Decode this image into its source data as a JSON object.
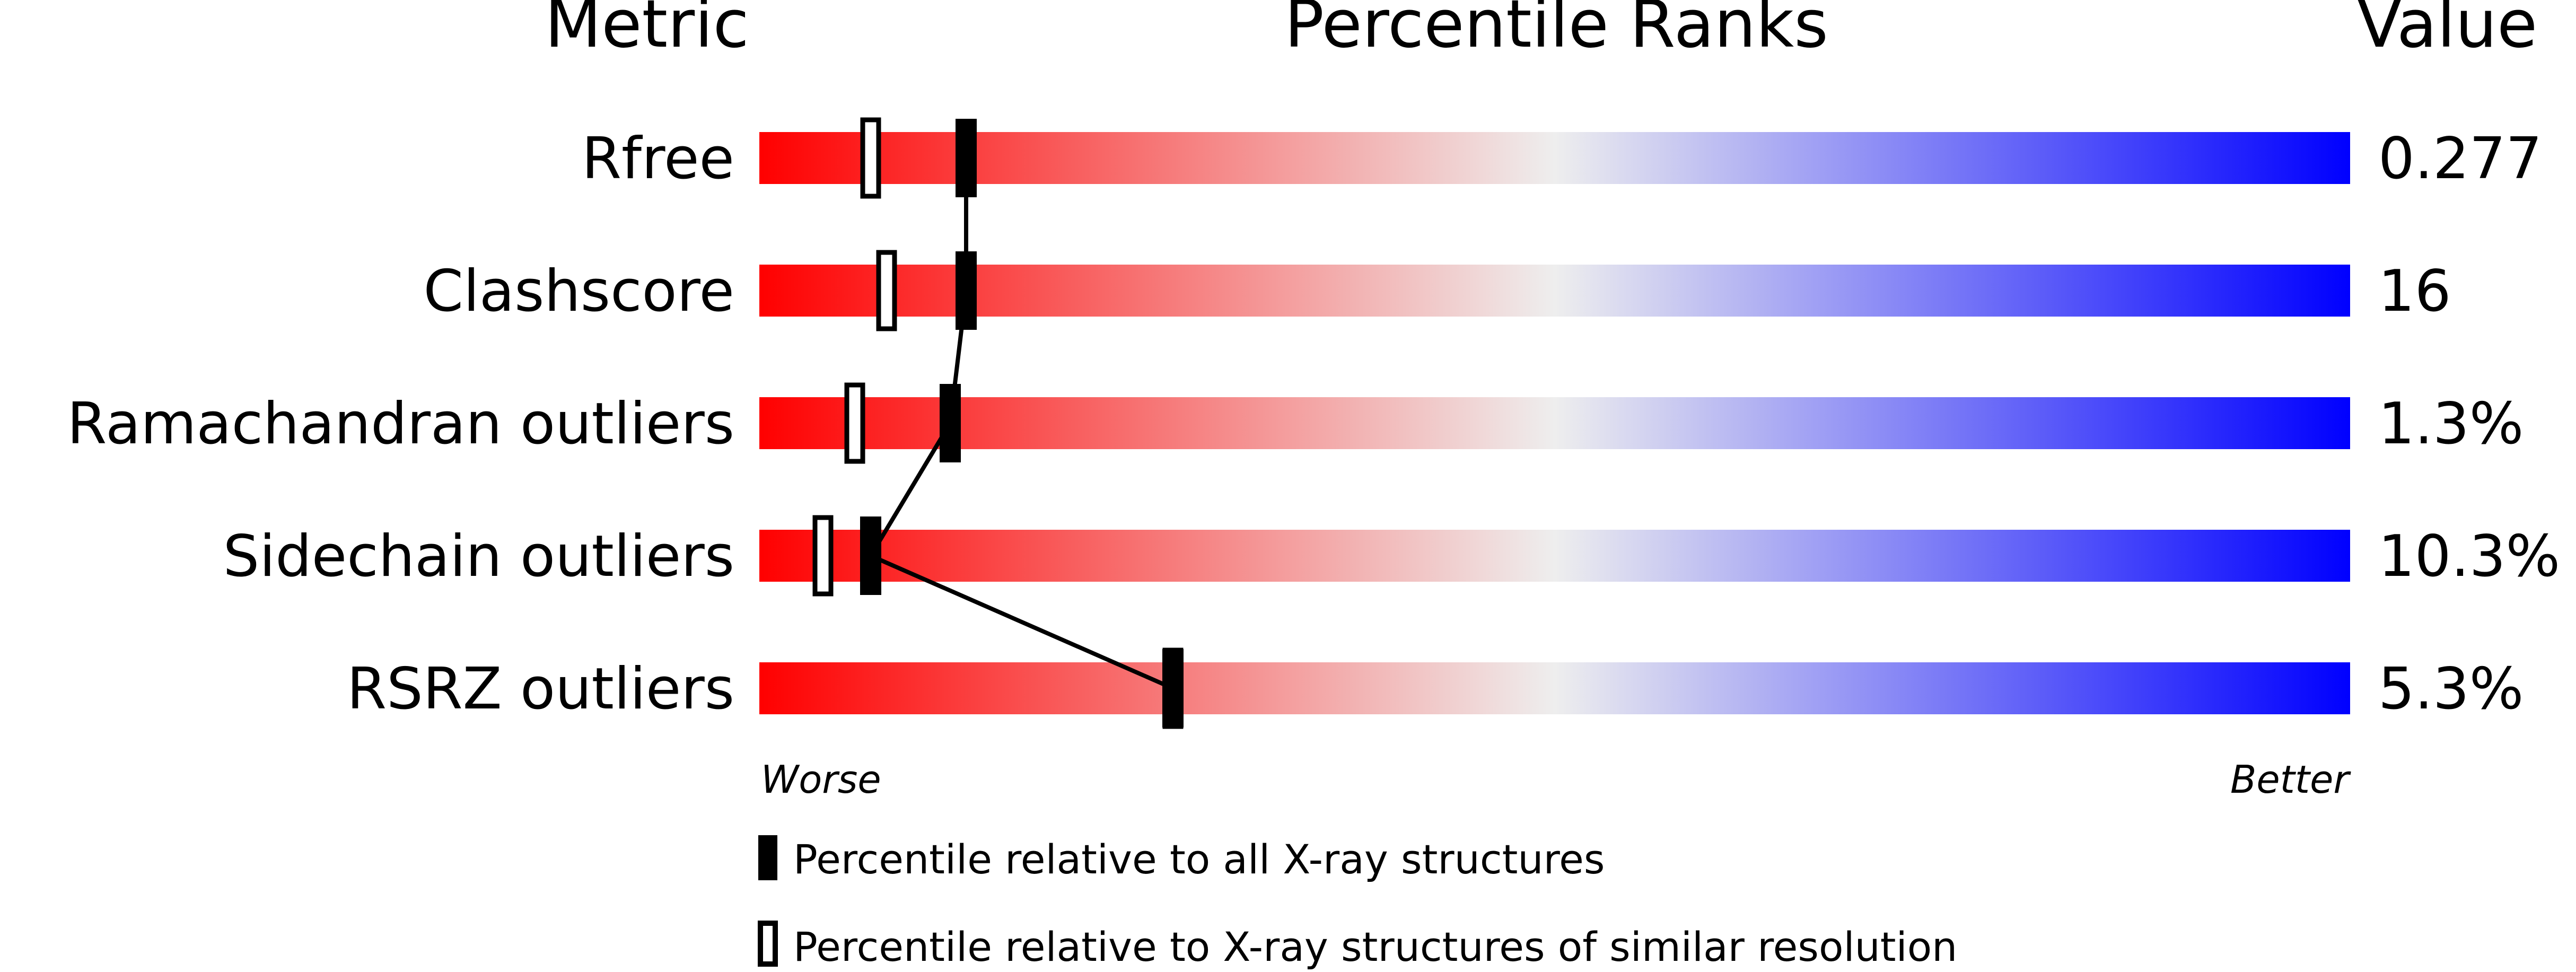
{
  "headers": {
    "metric": "Metric",
    "ranks": "Percentile Ranks",
    "value": "Value"
  },
  "axis": {
    "worse": "Worse",
    "better": "Better"
  },
  "legend": {
    "all": "Percentile relative to all X-ray structures",
    "similar": "Percentile relative to X-ray structures of similar resolution"
  },
  "colors": {
    "worse": "#ff0000",
    "mid": "#eeeeee",
    "better": "#0000ff",
    "marker": "#000000"
  },
  "chart_data": {
    "type": "bar",
    "xlim": [
      0,
      100
    ],
    "categories": [
      "Rfree",
      "Clashscore",
      "Ramachandran outliers",
      "Sidechain outliers",
      "RSRZ outliers"
    ],
    "values": [
      "0.277",
      "16",
      "1.3%",
      "10.3%",
      "5.3%"
    ],
    "series": [
      {
        "name": "Percentile relative to all X-ray structures",
        "values": [
          13,
          13,
          12,
          7,
          26
        ]
      },
      {
        "name": "Percentile relative to X-ray structures of similar resolution",
        "values": [
          7,
          8,
          6,
          4,
          26
        ]
      }
    ]
  }
}
